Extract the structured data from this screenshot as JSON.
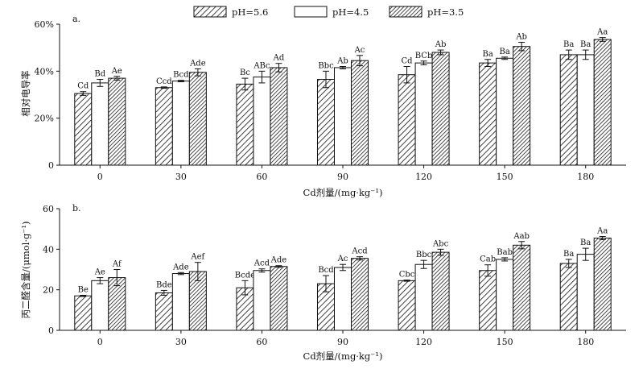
{
  "legend": [
    {
      "name": "pH=5.6",
      "pattern": "hatch-sparse"
    },
    {
      "name": "pH=4.5",
      "pattern": "white"
    },
    {
      "name": "pH=3.5",
      "pattern": "hatch-dense"
    }
  ],
  "chart_data": [
    {
      "type": "bar",
      "panel_label": "a.",
      "title": "",
      "xlabel": "Cd剂量/(mg·kg⁻¹)",
      "ylabel": "相对电导率",
      "ylim": [
        0,
        60
      ],
      "y_ticks": [
        0,
        20,
        40,
        60
      ],
      "y_tick_labels": [
        "0",
        "20%",
        "40%",
        "60%"
      ],
      "categories": [
        "0",
        "30",
        "60",
        "90",
        "120",
        "150",
        "180"
      ],
      "series": [
        {
          "name": "pH=5.6",
          "values": [
            30.5,
            33.0,
            34.5,
            36.5,
            38.5,
            43.5,
            47.0
          ],
          "errors": [
            0.8,
            0.3,
            2.5,
            3.5,
            3.5,
            1.5,
            2.0
          ],
          "labels": [
            "Cd",
            "Ccd",
            "Bc",
            "Bbc",
            "Cd",
            "Ba",
            "Ba"
          ]
        },
        {
          "name": "pH=4.5",
          "values": [
            35.0,
            35.8,
            37.5,
            41.5,
            43.5,
            45.5,
            47.0
          ],
          "errors": [
            1.5,
            0.3,
            2.5,
            0.5,
            0.8,
            0.5,
            2.0
          ],
          "labels": [
            "Bd",
            "Bcd",
            "ABc",
            "Ab",
            "BCb",
            "Ba",
            "Ba"
          ]
        },
        {
          "name": "pH=3.5",
          "values": [
            37.0,
            39.5,
            41.5,
            44.5,
            48.0,
            50.5,
            53.5
          ],
          "errors": [
            0.8,
            1.5,
            1.8,
            2.2,
            1.0,
            1.8,
            0.8
          ],
          "labels": [
            "Ae",
            "Ade",
            "Ad",
            "Ac",
            "Ab",
            "Ab",
            "Aa"
          ]
        }
      ]
    },
    {
      "type": "bar",
      "panel_label": "b.",
      "title": "",
      "xlabel": "Cd剂量/(mg·kg⁻¹)",
      "ylabel": "丙二醛含量/(μmol·g⁻¹)",
      "ylim": [
        0,
        60
      ],
      "y_ticks": [
        0,
        20,
        40,
        60
      ],
      "y_tick_labels": [
        "0",
        "20",
        "40",
        "60"
      ],
      "categories": [
        "0",
        "30",
        "60",
        "90",
        "120",
        "150",
        "180"
      ],
      "series": [
        {
          "name": "pH=5.6",
          "values": [
            17.0,
            18.5,
            21.0,
            23.0,
            24.5,
            29.5,
            33.0
          ],
          "errors": [
            0.3,
            1.2,
            3.5,
            4.0,
            0.3,
            2.8,
            2.0
          ],
          "labels": [
            "Be",
            "Bde",
            "Bcde",
            "Bcd",
            "Cbc",
            "Cab",
            "Ba"
          ]
        },
        {
          "name": "pH=4.5",
          "values": [
            24.5,
            28.0,
            29.5,
            31.0,
            32.5,
            35.0,
            37.5
          ],
          "errors": [
            1.5,
            0.5,
            0.8,
            1.5,
            2.0,
            0.8,
            3.0
          ],
          "labels": [
            "Ae",
            "Ade",
            "Acd",
            "Ac",
            "Bbc",
            "Bab",
            "Ba"
          ]
        },
        {
          "name": "pH=3.5",
          "values": [
            26.0,
            29.0,
            31.5,
            35.5,
            38.5,
            42.0,
            45.5
          ],
          "errors": [
            4.0,
            4.5,
            0.4,
            0.8,
            1.5,
            1.8,
            0.8
          ],
          "labels": [
            "Af",
            "Aef",
            "Ade",
            "Acd",
            "Abc",
            "Aab",
            "Aa"
          ]
        }
      ]
    }
  ]
}
